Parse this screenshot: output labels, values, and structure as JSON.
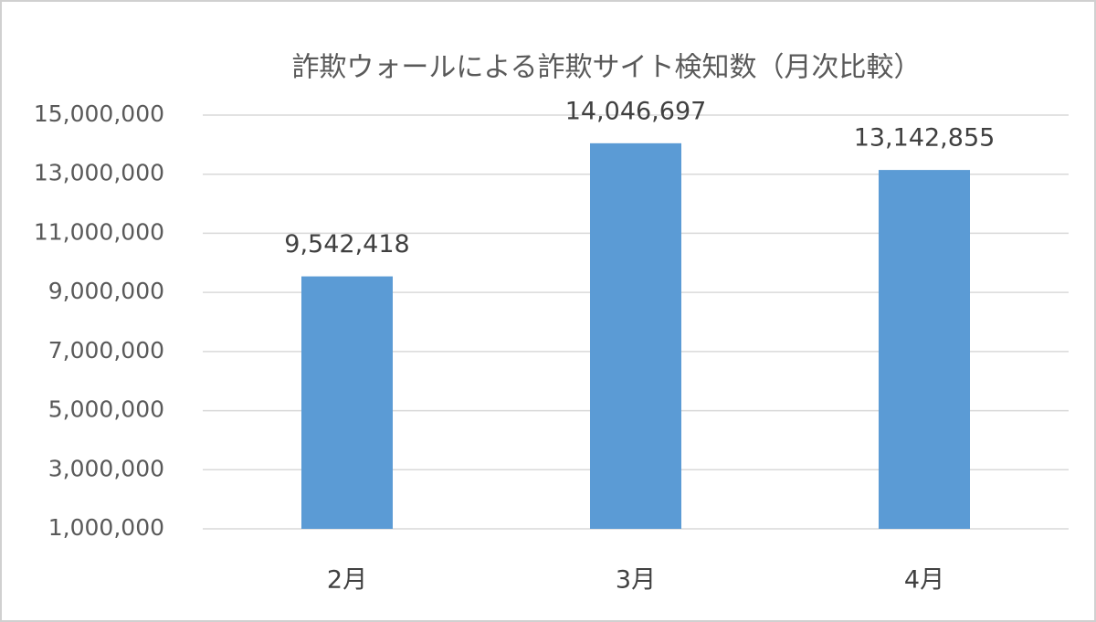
{
  "chart_data": {
    "type": "bar",
    "title": "詐欺ウォールによる詐欺サイト検知数（月次比較）",
    "categories": [
      "2月",
      "3月",
      "4月"
    ],
    "values": [
      9542418,
      14046697,
      13142855
    ],
    "value_labels": [
      "9,542,418",
      "14,046,697",
      "13,142,855"
    ],
    "color": "#5b9bd5",
    "ylim": [
      1000000,
      15000000
    ],
    "yticks": [
      {
        "value": 1000000,
        "label": "1,000,000"
      },
      {
        "value": 3000000,
        "label": "3,000,000"
      },
      {
        "value": 5000000,
        "label": "5,000,000"
      },
      {
        "value": 7000000,
        "label": "7,000,000"
      },
      {
        "value": 9000000,
        "label": "9,000,000"
      },
      {
        "value": 11000000,
        "label": "11,000,000"
      },
      {
        "value": 13000000,
        "label": "13,000,000"
      },
      {
        "value": 15000000,
        "label": "15,000,000"
      }
    ],
    "grid": true
  }
}
